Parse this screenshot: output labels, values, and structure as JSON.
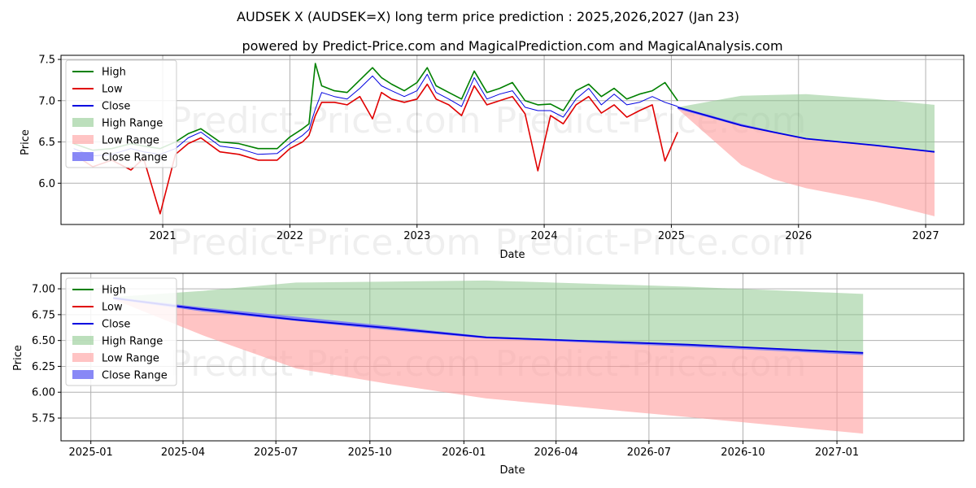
{
  "title": "AUDSEK X (AUDSEK=X) long term price prediction : 2025,2026,2027 (Jan 23)",
  "subtitle": "powered by Predict-Price.com and MagicalPrediction.com and MagicalAnalysis.com",
  "watermark": "Predict-Price.com",
  "colors": {
    "high": "#008000",
    "low": "#e00000",
    "close": "#0000e0",
    "high_range": "#8fc98f",
    "low_range": "#ff9c9c",
    "close_range": "#7b7bf5",
    "grid": "#b0b0b0"
  },
  "legend": [
    {
      "key": "high",
      "label": "High",
      "kind": "line"
    },
    {
      "key": "low",
      "label": "Low",
      "kind": "line"
    },
    {
      "key": "close",
      "label": "Close",
      "kind": "line"
    },
    {
      "key": "high_range",
      "label": "High Range",
      "kind": "patch"
    },
    {
      "key": "low_range",
      "label": "Low Range",
      "kind": "patch"
    },
    {
      "key": "close_range",
      "label": "Close Range",
      "kind": "patch"
    }
  ],
  "chart_data": [
    {
      "type": "line",
      "name": "long-term",
      "xlabel": "Date",
      "ylabel": "Price",
      "xlim": [
        2020.2,
        2027.3
      ],
      "ylim": [
        5.5,
        7.55
      ],
      "xticks": [
        {
          "value": 2021,
          "label": "2021"
        },
        {
          "value": 2022,
          "label": "2022"
        },
        {
          "value": 2023,
          "label": "2023"
        },
        {
          "value": 2024,
          "label": "2024"
        },
        {
          "value": 2025,
          "label": "2025"
        },
        {
          "value": 2026,
          "label": "2026"
        },
        {
          "value": 2027,
          "label": "2027"
        }
      ],
      "yticks": [
        {
          "value": 6.0,
          "label": "6.0"
        },
        {
          "value": 6.5,
          "label": "6.5"
        },
        {
          "value": 7.0,
          "label": "7.0"
        },
        {
          "value": 7.5,
          "label": "7.5"
        }
      ],
      "grid": true,
      "legend_position": "top-left",
      "history": {
        "x": [
          2020.3,
          2020.45,
          2020.6,
          2020.75,
          2020.85,
          2020.98,
          2021.1,
          2021.2,
          2021.3,
          2021.45,
          2021.6,
          2021.75,
          2021.9,
          2022.0,
          2022.1,
          2022.15,
          2022.2,
          2022.25,
          2022.35,
          2022.45,
          2022.55,
          2022.65,
          2022.72,
          2022.8,
          2022.9,
          2023.0,
          2023.08,
          2023.15,
          2023.25,
          2023.35,
          2023.45,
          2023.55,
          2023.65,
          2023.75,
          2023.85,
          2023.95,
          2024.05,
          2024.15,
          2024.25,
          2024.35,
          2024.45,
          2024.55,
          2024.65,
          2024.75,
          2024.85,
          2024.95,
          2025.05
        ],
        "close": [
          6.42,
          6.33,
          6.35,
          6.42,
          6.38,
          6.35,
          6.42,
          6.55,
          6.62,
          6.45,
          6.42,
          6.35,
          6.36,
          6.48,
          6.58,
          6.65,
          6.9,
          7.1,
          7.05,
          7.02,
          7.15,
          7.3,
          7.18,
          7.12,
          7.05,
          7.12,
          7.32,
          7.1,
          7.02,
          6.93,
          7.28,
          7.02,
          7.08,
          7.12,
          6.92,
          6.88,
          6.88,
          6.8,
          7.02,
          7.15,
          6.95,
          7.08,
          6.95,
          6.98,
          7.05,
          6.98,
          6.93
        ],
        "high": [
          6.48,
          6.4,
          6.42,
          6.48,
          6.45,
          6.42,
          6.5,
          6.6,
          6.66,
          6.5,
          6.48,
          6.42,
          6.42,
          6.56,
          6.66,
          6.72,
          7.45,
          7.18,
          7.12,
          7.1,
          7.25,
          7.4,
          7.28,
          7.2,
          7.12,
          7.22,
          7.4,
          7.18,
          7.1,
          7.02,
          7.36,
          7.1,
          7.15,
          7.22,
          7.0,
          6.95,
          6.96,
          6.88,
          7.12,
          7.2,
          7.05,
          7.15,
          7.02,
          7.08,
          7.12,
          7.22,
          7.0
        ],
        "low": [
          6.35,
          6.2,
          6.28,
          6.16,
          6.3,
          5.63,
          6.35,
          6.48,
          6.55,
          6.38,
          6.35,
          6.28,
          6.28,
          6.42,
          6.5,
          6.58,
          6.82,
          6.98,
          6.98,
          6.95,
          7.05,
          6.78,
          7.1,
          7.02,
          6.98,
          7.02,
          7.2,
          7.02,
          6.95,
          6.82,
          7.18,
          6.95,
          7.0,
          7.05,
          6.84,
          6.15,
          6.82,
          6.72,
          6.95,
          7.05,
          6.85,
          6.95,
          6.8,
          6.88,
          6.95,
          6.27,
          6.62
        ]
      },
      "prediction": {
        "x": [
          2025.05,
          2025.55,
          2025.8,
          2026.06,
          2026.6,
          2027.07
        ],
        "high_range_upper": [
          6.92,
          7.06,
          7.07,
          7.08,
          7.02,
          6.95
        ],
        "low_range_lower": [
          6.9,
          6.22,
          6.05,
          5.94,
          5.78,
          5.6
        ],
        "close": [
          6.92,
          6.7,
          6.62,
          6.54,
          6.46,
          6.38
        ],
        "close_range_upper": [
          6.93,
          6.72,
          6.63,
          6.54,
          6.46,
          6.39
        ],
        "close_range_lower": [
          6.9,
          6.69,
          6.61,
          6.53,
          6.45,
          6.37
        ]
      }
    },
    {
      "type": "line",
      "name": "prediction-zoom",
      "xlabel": "Date",
      "ylabel": "Price",
      "xlim": [
        2024.92,
        2027.34
      ],
      "ylim": [
        5.53,
        7.15
      ],
      "xticks": [
        {
          "value": 2025.0,
          "label": "2025-01"
        },
        {
          "value": 2025.247,
          "label": "2025-04"
        },
        {
          "value": 2025.496,
          "label": "2025-07"
        },
        {
          "value": 2025.748,
          "label": "2025-10"
        },
        {
          "value": 2026.0,
          "label": "2026-01"
        },
        {
          "value": 2026.247,
          "label": "2026-04"
        },
        {
          "value": 2026.496,
          "label": "2026-07"
        },
        {
          "value": 2026.748,
          "label": "2026-10"
        },
        {
          "value": 2027.0,
          "label": "2027-01"
        }
      ],
      "yticks": [
        {
          "value": 5.75,
          "label": "5.75"
        },
        {
          "value": 6.0,
          "label": "6.00"
        },
        {
          "value": 6.25,
          "label": "6.25"
        },
        {
          "value": 6.5,
          "label": "6.50"
        },
        {
          "value": 6.75,
          "label": "6.75"
        },
        {
          "value": 7.0,
          "label": "7.00"
        }
      ],
      "grid": true,
      "legend_position": "top-left",
      "prediction": {
        "x": [
          2025.06,
          2025.3,
          2025.55,
          2025.8,
          2026.06,
          2026.6,
          2027.07
        ],
        "high_range_upper": [
          6.92,
          6.98,
          7.06,
          7.07,
          7.08,
          7.02,
          6.95
        ],
        "low_range_lower": [
          6.9,
          6.55,
          6.23,
          6.08,
          5.94,
          5.76,
          5.6
        ],
        "close": [
          6.91,
          6.8,
          6.7,
          6.62,
          6.53,
          6.46,
          6.38
        ],
        "close_range_upper": [
          6.92,
          6.82,
          6.73,
          6.64,
          6.54,
          6.46,
          6.39
        ],
        "close_range_lower": [
          6.9,
          6.78,
          6.69,
          6.6,
          6.52,
          6.44,
          6.36
        ]
      }
    }
  ]
}
